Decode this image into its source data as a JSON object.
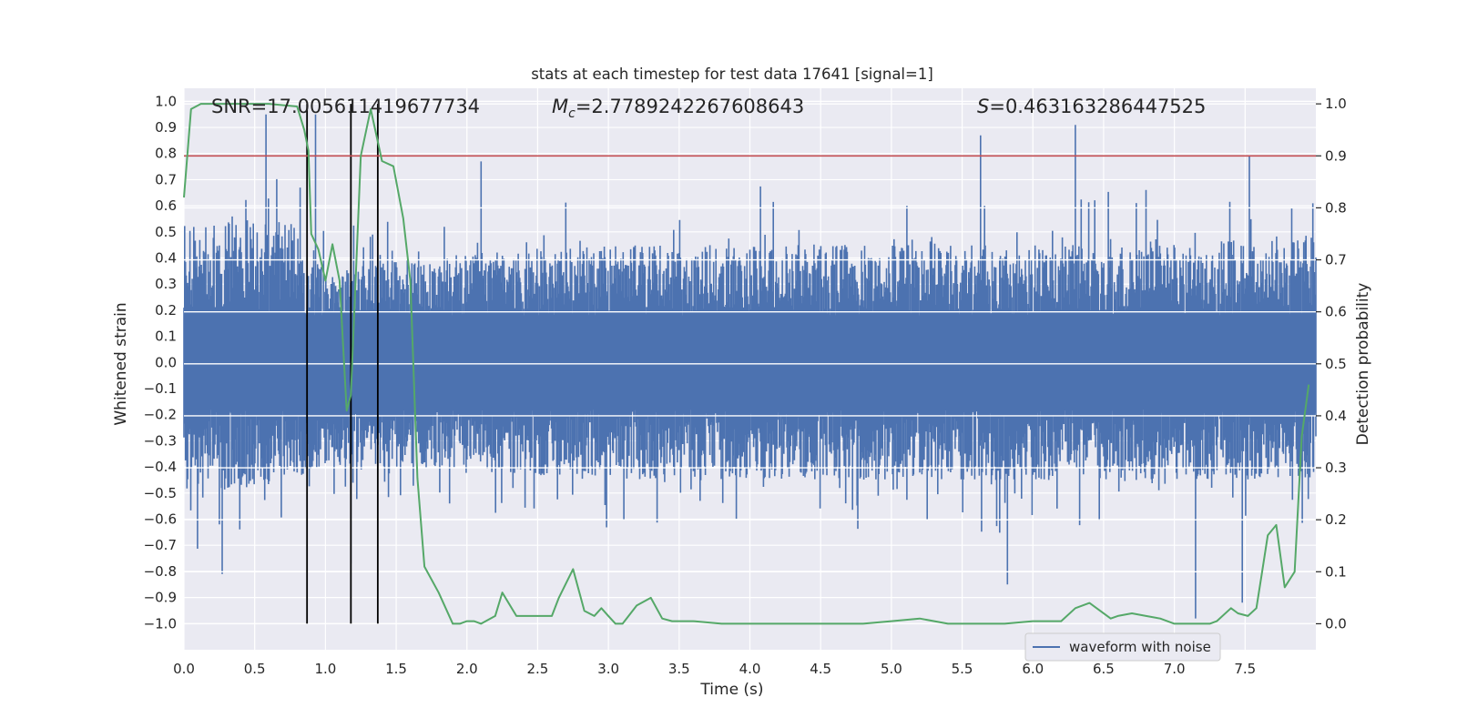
{
  "chart_data": {
    "type": "line",
    "title": "stats at each timestep for test data 17641 [signal=1]",
    "xlabel": "Time (s)",
    "ylabel_left": "Whitened strain",
    "ylabel_right": "Detection probability",
    "xlim": [
      0.0,
      8.0
    ],
    "ylim_left": [
      -1.1,
      1.05
    ],
    "ylim_right": [
      -0.05,
      1.03
    ],
    "x_ticks": [
      "0.0",
      "0.5",
      "1.0",
      "1.5",
      "2.0",
      "2.5",
      "3.0",
      "3.5",
      "4.0",
      "4.5",
      "5.0",
      "5.5",
      "6.0",
      "6.5",
      "7.0",
      "7.5"
    ],
    "y_left_ticks": [
      "1.0",
      "0.9",
      "0.8",
      "0.7",
      "0.6",
      "0.5",
      "0.4",
      "0.3",
      "0.2",
      "0.1",
      "0.0",
      "−0.1",
      "−0.2",
      "−0.3",
      "−0.4",
      "−0.5",
      "−0.6",
      "−0.7",
      "−0.8",
      "−0.9",
      "−1.0"
    ],
    "y_right_ticks": [
      "1.0",
      "0.9",
      "0.8",
      "0.7",
      "0.6",
      "0.5",
      "0.4",
      "0.3",
      "0.2",
      "0.1",
      "0.0"
    ],
    "annotations": {
      "snr": "SNR=17.005611419677734",
      "mc_symbol": "M",
      "mc_sub": "c",
      "mc_value": "=2.7789242267608643",
      "s_symbol": "S",
      "s_value": "=0.463163286447525"
    },
    "threshold": {
      "value": 0.9,
      "axis": "right",
      "color": "#c44e52"
    },
    "vertical_lines": [
      0.87,
      1.18,
      1.37
    ],
    "series": [
      {
        "name": "waveform with noise",
        "axis": "left",
        "color": "#4c72b0",
        "description": "dense whitened strain noise, typical envelope ±0.5, spikes up to ±0.9",
        "peaks": [
          {
            "x": 0.58,
            "y": 0.95
          },
          {
            "x": 0.93,
            "y": 0.95
          },
          {
            "x": 0.27,
            "y": -0.81
          },
          {
            "x": 1.18,
            "y": -0.77
          },
          {
            "x": 2.1,
            "y": 0.77
          },
          {
            "x": 5.63,
            "y": 0.87
          },
          {
            "x": 6.3,
            "y": 0.91
          },
          {
            "x": 7.15,
            "y": -0.98
          },
          {
            "x": 7.53,
            "y": 0.79
          },
          {
            "x": 5.82,
            "y": -0.85
          },
          {
            "x": 7.48,
            "y": -0.92
          }
        ],
        "envelope": [
          {
            "x": 0.0,
            "upper": 0.55,
            "lower": -0.5
          },
          {
            "x": 0.8,
            "upper": 0.55,
            "lower": -0.45
          },
          {
            "x": 1.0,
            "upper": 0.35,
            "lower": -0.4
          },
          {
            "x": 1.6,
            "upper": 0.4,
            "lower": -0.4
          },
          {
            "x": 3.0,
            "upper": 0.45,
            "lower": -0.45
          },
          {
            "x": 5.0,
            "upper": 0.45,
            "lower": -0.45
          },
          {
            "x": 7.0,
            "upper": 0.45,
            "lower": -0.45
          },
          {
            "x": 8.0,
            "upper": 0.5,
            "lower": -0.45
          }
        ]
      },
      {
        "name": "detection probability",
        "axis": "right",
        "color": "#55a868",
        "x": [
          0.0,
          0.05,
          0.12,
          0.2,
          0.4,
          0.6,
          0.8,
          0.85,
          0.88,
          0.9,
          0.95,
          1.0,
          1.05,
          1.1,
          1.15,
          1.18,
          1.25,
          1.32,
          1.4,
          1.48,
          1.55,
          1.6,
          1.65,
          1.7,
          1.8,
          1.9,
          1.95,
          2.0,
          2.05,
          2.1,
          2.2,
          2.25,
          2.35,
          2.45,
          2.6,
          2.65,
          2.75,
          2.83,
          2.9,
          2.95,
          3.0,
          3.05,
          3.1,
          3.2,
          3.3,
          3.38,
          3.45,
          3.6,
          3.8,
          4.0,
          4.2,
          4.4,
          4.6,
          4.8,
          5.0,
          5.2,
          5.4,
          5.6,
          5.8,
          6.0,
          6.2,
          6.3,
          6.4,
          6.55,
          6.6,
          6.7,
          6.8,
          6.9,
          7.0,
          7.05,
          7.15,
          7.25,
          7.3,
          7.4,
          7.45,
          7.52,
          7.58,
          7.62,
          7.66,
          7.72,
          7.78,
          7.85,
          7.9,
          7.95
        ],
        "y": [
          0.82,
          0.99,
          1.0,
          1.0,
          1.0,
          1.0,
          0.995,
          0.95,
          0.91,
          0.75,
          0.72,
          0.66,
          0.73,
          0.66,
          0.41,
          0.44,
          0.9,
          0.99,
          0.89,
          0.88,
          0.78,
          0.66,
          0.28,
          0.11,
          0.06,
          0.0,
          0.0,
          0.005,
          0.005,
          0.0,
          0.015,
          0.06,
          0.015,
          0.015,
          0.015,
          0.05,
          0.105,
          0.025,
          0.015,
          0.03,
          0.015,
          0.0,
          0.0,
          0.035,
          0.05,
          0.01,
          0.005,
          0.005,
          0.0,
          0.0,
          0.0,
          0.0,
          0.0,
          0.0,
          0.005,
          0.01,
          0.0,
          0.0,
          0.0,
          0.005,
          0.005,
          0.03,
          0.04,
          0.01,
          0.015,
          0.02,
          0.015,
          0.01,
          0.0,
          0.0,
          0.0,
          0.0,
          0.005,
          0.03,
          0.02,
          0.015,
          0.03,
          0.1,
          0.17,
          0.19,
          0.07,
          0.1,
          0.36,
          0.46
        ]
      }
    ],
    "legend": {
      "label": "waveform with noise",
      "placement": "lower right"
    }
  }
}
